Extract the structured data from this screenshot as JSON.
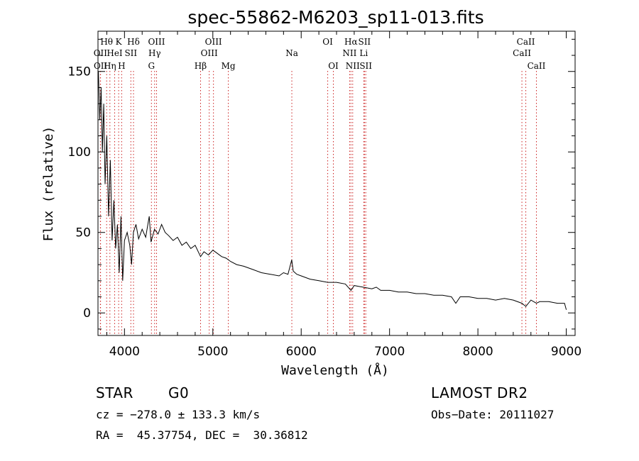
{
  "chart_data": {
    "type": "line",
    "title": "spec-55862-M6203_sp11-013.fits",
    "xlabel": "Wavelength (Å)",
    "ylabel": "Flux (relative)",
    "xlim": [
      3700,
      9100
    ],
    "ylim": [
      -14,
      175
    ],
    "x_ticks": [
      4000,
      5000,
      6000,
      7000,
      8000,
      9000
    ],
    "y_ticks": [
      0,
      50,
      100,
      150
    ],
    "grid": false,
    "series": [
      {
        "x": [
          3705,
          3720,
          3735,
          3750,
          3765,
          3780,
          3800,
          3820,
          3840,
          3860,
          3880,
          3900,
          3920,
          3940,
          3960,
          3980,
          4000,
          4030,
          4060,
          4080,
          4101,
          4130,
          4160,
          4200,
          4240,
          4280,
          4300,
          4340,
          4380,
          4420,
          4460,
          4500,
          4550,
          4600,
          4650,
          4700,
          4750,
          4800,
          4861,
          4900,
          4950,
          5000,
          5050,
          5100,
          5150,
          5200,
          5270,
          5350,
          5450,
          5550,
          5650,
          5750,
          5800,
          5850,
          5893,
          5910,
          5950,
          6000,
          6100,
          6200,
          6300,
          6400,
          6500,
          6563,
          6600,
          6700,
          6800,
          6850,
          6900,
          7000,
          7100,
          7200,
          7300,
          7400,
          7500,
          7600,
          7700,
          7750,
          7800,
          7900,
          8000,
          8100,
          8200,
          8300,
          8400,
          8498,
          8542,
          8600,
          8662,
          8700,
          8800,
          8900,
          8980,
          9000
        ],
        "y": [
          150,
          120,
          140,
          100,
          130,
          80,
          110,
          60,
          95,
          45,
          70,
          40,
          55,
          25,
          60,
          20,
          45,
          50,
          42,
          30,
          50,
          55,
          46,
          52,
          47,
          60,
          44,
          52,
          49,
          55,
          50,
          48,
          45,
          47,
          42,
          44,
          40,
          42,
          35,
          38,
          36,
          39,
          37,
          35,
          34,
          32,
          30,
          29,
          27,
          25,
          24,
          23,
          25,
          24,
          33,
          26,
          24,
          23,
          21,
          20,
          19,
          19,
          18,
          14,
          17,
          16,
          15,
          16,
          14,
          14,
          13,
          13,
          12,
          12,
          11,
          11,
          10,
          6,
          10,
          10,
          9,
          9,
          8,
          9,
          8,
          6,
          4,
          8,
          6,
          7,
          7,
          6,
          6,
          2
        ]
      }
    ],
    "line_markers": [
      {
        "label": "OII",
        "x": 3727,
        "row": 2
      },
      {
        "label": "OII",
        "x": 3729,
        "row": 3
      },
      {
        "label": "Hθ",
        "x": 3798,
        "row": 1
      },
      {
        "label": "Hη",
        "x": 3835,
        "row": 3
      },
      {
        "label": "HeI",
        "x": 3889,
        "row": 2
      },
      {
        "label": "K",
        "x": 3934,
        "row": 1
      },
      {
        "label": "H",
        "x": 3968,
        "row": 3
      },
      {
        "label": "SII",
        "x": 4072,
        "row": 2
      },
      {
        "label": "Hδ",
        "x": 4102,
        "row": 1
      },
      {
        "label": "G",
        "x": 4305,
        "row": 3
      },
      {
        "label": "Hγ",
        "x": 4341,
        "row": 2
      },
      {
        "label": "OIII",
        "x": 4363,
        "row": 1
      },
      {
        "label": "Hβ",
        "x": 4861,
        "row": 3
      },
      {
        "label": "OIII",
        "x": 4959,
        "row": 2
      },
      {
        "label": "OIII",
        "x": 5007,
        "row": 1
      },
      {
        "label": "Mg",
        "x": 5175,
        "row": 3
      },
      {
        "label": "Na",
        "x": 5894,
        "row": 2
      },
      {
        "label": "OI",
        "x": 6300,
        "row": 1
      },
      {
        "label": "OI",
        "x": 6364,
        "row": 3
      },
      {
        "label": "NII",
        "x": 6548,
        "row": 2
      },
      {
        "label": "Hα",
        "x": 6563,
        "row": 1
      },
      {
        "label": "NII",
        "x": 6583,
        "row": 3
      },
      {
        "label": "Li",
        "x": 6708,
        "row": 2
      },
      {
        "label": "SII",
        "x": 6716,
        "row": 1
      },
      {
        "label": "SII",
        "x": 6731,
        "row": 3
      },
      {
        "label": "CaII",
        "x": 8498,
        "row": 2
      },
      {
        "label": "CaII",
        "x": 8542,
        "row": 1
      },
      {
        "label": "CaII",
        "x": 8662,
        "row": 3
      }
    ]
  },
  "info": {
    "class": "STAR",
    "subclass": "G0",
    "survey": "LAMOST DR2",
    "cz": "cz = −278.0 ± 133.3 km/s",
    "obs_date": "Obs−Date: 20111027",
    "coords": "RA =  45.37754, DEC =  30.36812"
  }
}
